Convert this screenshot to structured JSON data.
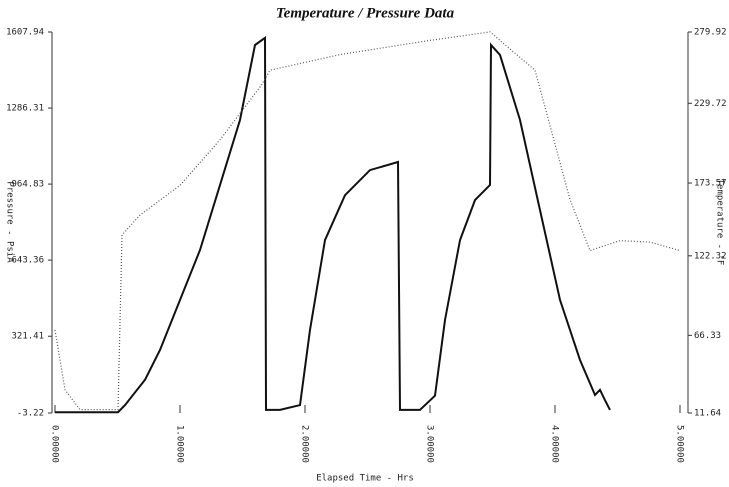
{
  "chart_data": {
    "type": "line",
    "title": "Temperature / Pressure Data",
    "x_label": "Elapsed Time - Hrs",
    "y_label": "Pressure - PsiA",
    "y2_label": "Temperature - °F",
    "xlim": [
      0,
      5.04
    ],
    "xticks": [
      {
        "value": 0,
        "label": "0.00000"
      },
      {
        "value": 1,
        "label": "1.00000"
      },
      {
        "value": 2,
        "label": "2.00000"
      },
      {
        "value": 3,
        "label": "3.00000"
      },
      {
        "value": 4,
        "label": "4.00000"
      },
      {
        "value": 5,
        "label": "5.00000"
      }
    ],
    "ylim": [
      -3.22,
      1607.94
    ],
    "yticks": [
      -3.22,
      321.41,
      643.36,
      964.83,
      1286.31,
      1607.94
    ],
    "y2lim": [
      11.64,
      279.92
    ],
    "y2ticks": [
      11.64,
      66.33,
      122.32,
      173.57,
      229.72,
      279.92
    ],
    "series": [
      {
        "color": "#111111",
        "style": "solid",
        "x": [
          0,
          0.504,
          0.56,
          0.72,
          0.84,
          1.16,
          1.48,
          1.6,
          1.656,
          1.68,
          1.688,
          1.8,
          1.96,
          2.04,
          2.16,
          2.32,
          2.52,
          2.744,
          2.76,
          2.92,
          3.04,
          3.12,
          3.24,
          3.36,
          3.48,
          3.488,
          3.56,
          3.72,
          3.88,
          4.04,
          4.2,
          4.32,
          4.36,
          4.4,
          4.44
        ],
        "values": [
          0,
          0,
          30,
          137,
          263,
          686,
          1236,
          1553,
          1574,
          1583,
          10,
          10,
          30,
          348,
          728,
          918,
          1024,
          1058,
          10,
          10,
          70,
          390,
          728,
          897,
          961,
          1553,
          1511,
          1236,
          855,
          475,
          221,
          73,
          95,
          51,
          10
        ]
      },
      {
        "color": "#555555",
        "style": "dotted",
        "axis": "y2",
        "x": [
          0,
          0.08,
          0.2,
          0.504,
          0.536,
          0.68,
          1,
          1.32,
          1.656,
          1.72,
          2.28,
          3,
          3.48,
          3.6,
          3.84,
          4.12,
          4.28,
          4.52,
          4.76,
          5
        ],
        "values": [
          70,
          28,
          14,
          14,
          137,
          151,
          172,
          204,
          243,
          253,
          264,
          274,
          280,
          271,
          253,
          162,
          126,
          133,
          132,
          126
        ]
      }
    ]
  }
}
